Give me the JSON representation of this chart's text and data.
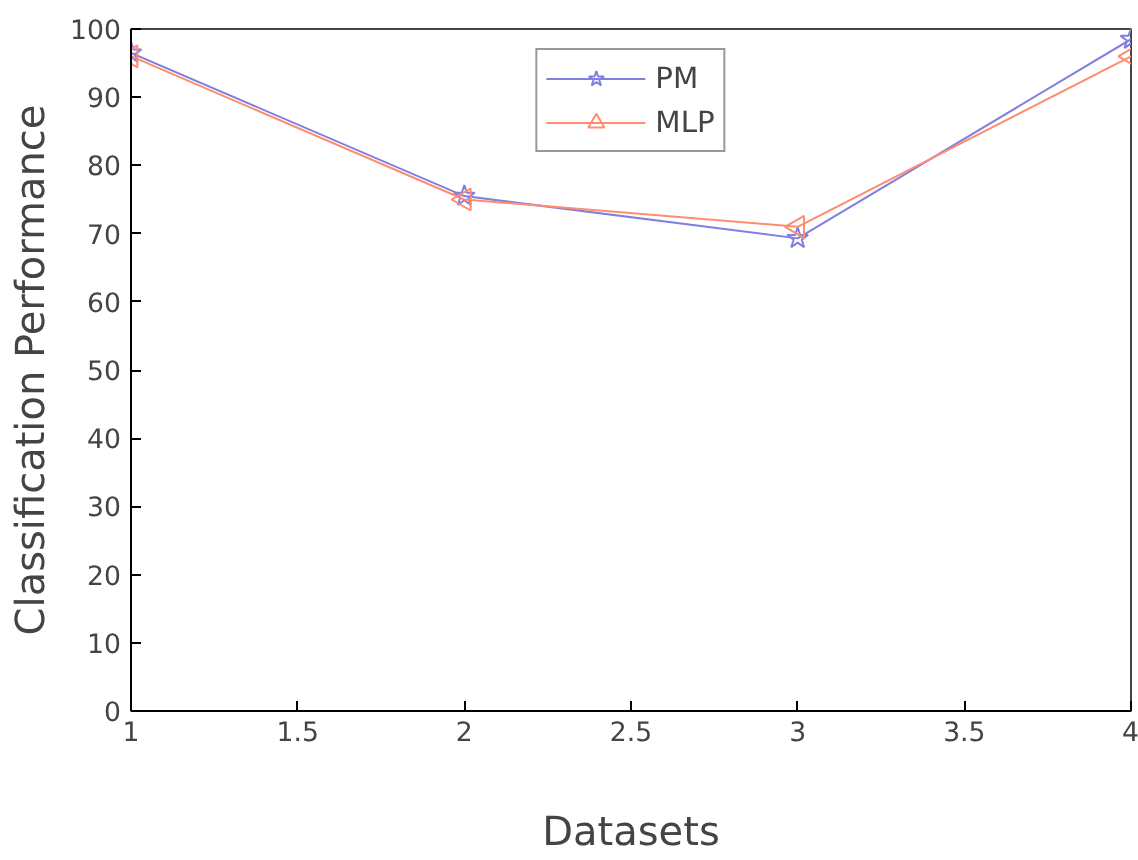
{
  "chart_data": {
    "type": "line",
    "xlabel": "Datasets",
    "ylabel": "Classification Performance",
    "x": [
      1,
      2,
      3,
      4
    ],
    "series": [
      {
        "name": "PM",
        "color": "#8080e0",
        "values": [
          96.5,
          75.5,
          69.3,
          98.5
        ],
        "marker": "star"
      },
      {
        "name": "MLP",
        "color": "#ff8c70",
        "values": [
          96,
          75,
          71,
          96
        ],
        "marker": "triangle"
      }
    ],
    "xlim": [
      1,
      4
    ],
    "xticks": [
      1,
      1.5,
      2,
      2.5,
      3,
      3.5,
      4
    ],
    "ylim": [
      0,
      100
    ],
    "yticks": [
      0,
      10,
      20,
      30,
      40,
      50,
      60,
      70,
      80,
      90,
      100
    ],
    "grid": false,
    "legend": "top",
    "line_style": "solid"
  }
}
